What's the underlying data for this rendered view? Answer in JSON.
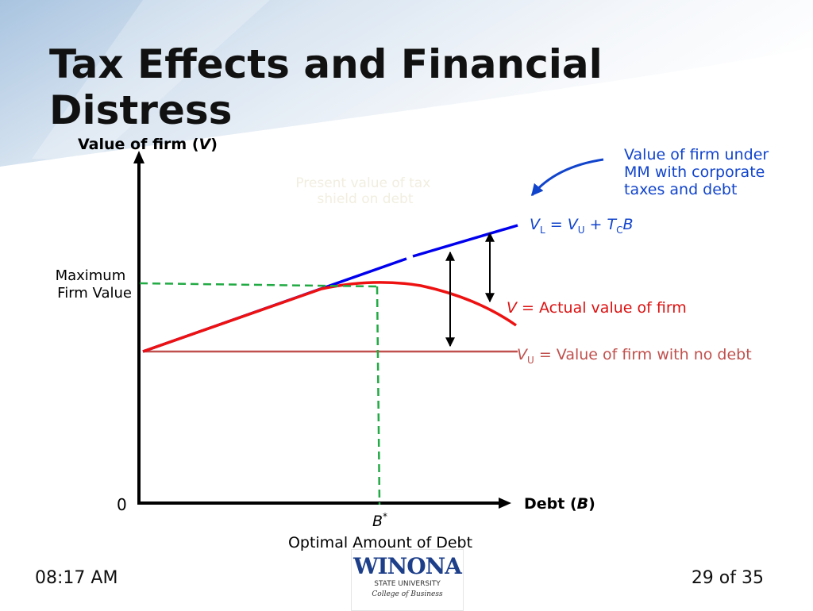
{
  "title": {
    "line1": "Tax Effects and Financial",
    "line2": "Distress"
  },
  "diagram": {
    "y_axis": {
      "label_main": "Value of firm (",
      "label_var": "V",
      "label_end": ")"
    },
    "x_axis": {
      "label_main": "Debt (",
      "label_var": "B",
      "label_end": ")"
    },
    "origin_label": "0",
    "max_value_label": {
      "line1": "Maximum",
      "line2": "Firm Value"
    },
    "b_star": {
      "var": "B",
      "sup": "*",
      "caption": "Optimal Amount of Debt"
    },
    "faded_note": {
      "line1": "Present value of tax",
      "line2": "shield on debt"
    },
    "mm_note": {
      "line1": "Value of firm under",
      "line2": "MM with corporate",
      "line3": "taxes and debt"
    },
    "vl_label": {
      "v1": "V",
      "s1": "L",
      "eq": " = ",
      "v2": "V",
      "s2": "U",
      "plus": " + ",
      "v3": "T",
      "s3": "C",
      "v4": "B"
    },
    "v_label": {
      "var": "V",
      "text": " = Actual value of firm"
    },
    "vu_label": {
      "var": "V",
      "sub": "U",
      "text": " = Value of firm with no debt"
    }
  },
  "colors": {
    "blue_line": "#0000ee",
    "red_curve": "#ee1111",
    "vu_line": "#c0504d",
    "green_dash": "#22aa44",
    "note_blue": "#1144cc",
    "red_text": "#dd1111"
  },
  "footer": {
    "time": "08:17 AM",
    "page": "29 of 35"
  },
  "logo": {
    "name": "WINONA",
    "sub": "STATE UNIVERSITY",
    "script": "College of Business"
  }
}
